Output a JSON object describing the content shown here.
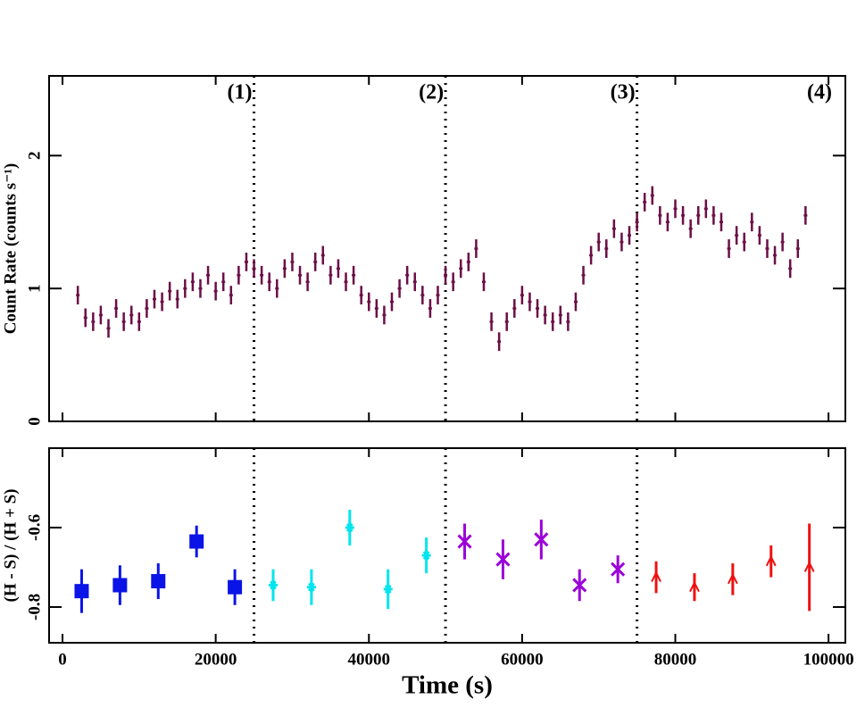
{
  "chart_data": [
    {
      "type": "errorbar",
      "ylabel": "Count Rate (counts s⁻¹)",
      "color": "#6b0f46",
      "error": 0.07,
      "x": [
        2000,
        3000,
        4000,
        5000,
        6000,
        7000,
        8000,
        9000,
        10000,
        11000,
        12000,
        13000,
        14000,
        15000,
        16000,
        17000,
        18000,
        19000,
        20000,
        21000,
        22000,
        23000,
        24000,
        25000,
        26000,
        27000,
        28000,
        29000,
        30000,
        31000,
        32000,
        33000,
        34000,
        35000,
        36000,
        37000,
        38000,
        39000,
        40000,
        41000,
        42000,
        43000,
        44000,
        45000,
        46000,
        47000,
        48000,
        49000,
        50000,
        51000,
        52000,
        53000,
        54000,
        55000,
        56000,
        57000,
        58000,
        59000,
        60000,
        61000,
        62000,
        63000,
        64000,
        65000,
        66000,
        67000,
        68000,
        69000,
        70000,
        71000,
        72000,
        73000,
        74000,
        75000,
        76000,
        77000,
        78000,
        79000,
        80000,
        81000,
        82000,
        83000,
        84000,
        85000,
        86000,
        87000,
        88000,
        89000,
        90000,
        91000,
        92000,
        93000,
        94000,
        95000,
        96000,
        97000
      ],
      "values": [
        0.95,
        0.78,
        0.75,
        0.8,
        0.7,
        0.85,
        0.75,
        0.8,
        0.75,
        0.85,
        0.92,
        0.9,
        0.98,
        0.92,
        1.0,
        1.05,
        1.0,
        1.1,
        0.98,
        1.05,
        0.95,
        1.1,
        1.2,
        1.15,
        1.1,
        1.05,
        1.0,
        1.15,
        1.2,
        1.1,
        1.05,
        1.2,
        1.25,
        1.1,
        1.15,
        1.05,
        1.1,
        0.95,
        0.9,
        0.85,
        0.8,
        0.9,
        1.0,
        1.1,
        1.05,
        0.95,
        0.85,
        0.95,
        1.1,
        1.05,
        1.15,
        1.2,
        1.3,
        1.05,
        0.75,
        0.6,
        0.75,
        0.85,
        0.95,
        0.9,
        0.85,
        0.8,
        0.75,
        0.8,
        0.75,
        0.9,
        1.1,
        1.25,
        1.35,
        1.3,
        1.45,
        1.35,
        1.4,
        1.5,
        1.65,
        1.7,
        1.55,
        1.5,
        1.6,
        1.55,
        1.45,
        1.55,
        1.6,
        1.55,
        1.5,
        1.3,
        1.4,
        1.35,
        1.5,
        1.4,
        1.3,
        1.25,
        1.35,
        1.15,
        1.3,
        1.55
      ],
      "xlim": [
        -1750,
        102200
      ],
      "ylim": [
        0,
        2.6
      ],
      "yticks": [
        0,
        1,
        2
      ],
      "dividers": [
        25000,
        50000,
        75000
      ],
      "annotations": [
        "(1)",
        "(2)",
        "(3)",
        "(4)"
      ]
    },
    {
      "type": "scatter",
      "xlabel": "Time (s)",
      "ylabel": "(H - S) / (H + S)",
      "xlim": [
        -1750,
        102200
      ],
      "ylim": [
        -0.89,
        -0.4
      ],
      "xticks": [
        0,
        20000,
        40000,
        60000,
        80000,
        100000
      ],
      "yticks": [
        -0.8,
        -0.6
      ],
      "series": [
        {
          "color": "#0a14e6",
          "marker": "square",
          "x": [
            2500,
            7500,
            12500,
            17500,
            22500
          ],
          "values": [
            -0.76,
            -0.745,
            -0.735,
            -0.635,
            -0.75
          ],
          "errors": [
            0.055,
            0.05,
            0.045,
            0.04,
            0.045
          ]
        },
        {
          "color": "#00e5ee",
          "marker": "asterisk",
          "x": [
            27500,
            32500,
            37500,
            42500,
            47500
          ],
          "values": [
            -0.745,
            -0.75,
            -0.6,
            -0.755,
            -0.67
          ],
          "errors": [
            0.04,
            0.045,
            0.045,
            0.05,
            0.045
          ]
        },
        {
          "color": "#9b00d9",
          "marker": "cross",
          "x": [
            52500,
            57500,
            62500,
            67500,
            72500
          ],
          "values": [
            -0.635,
            -0.68,
            -0.63,
            -0.745,
            -0.705
          ],
          "errors": [
            0.045,
            0.05,
            0.05,
            0.04,
            0.035
          ]
        },
        {
          "color": "#ee1111",
          "marker": "arrow",
          "x": [
            77500,
            82500,
            87500,
            92500,
            97500
          ],
          "values": [
            -0.725,
            -0.75,
            -0.73,
            -0.685,
            -0.7
          ],
          "errors": [
            0.04,
            0.035,
            0.04,
            0.04,
            0.11
          ]
        }
      ]
    }
  ]
}
